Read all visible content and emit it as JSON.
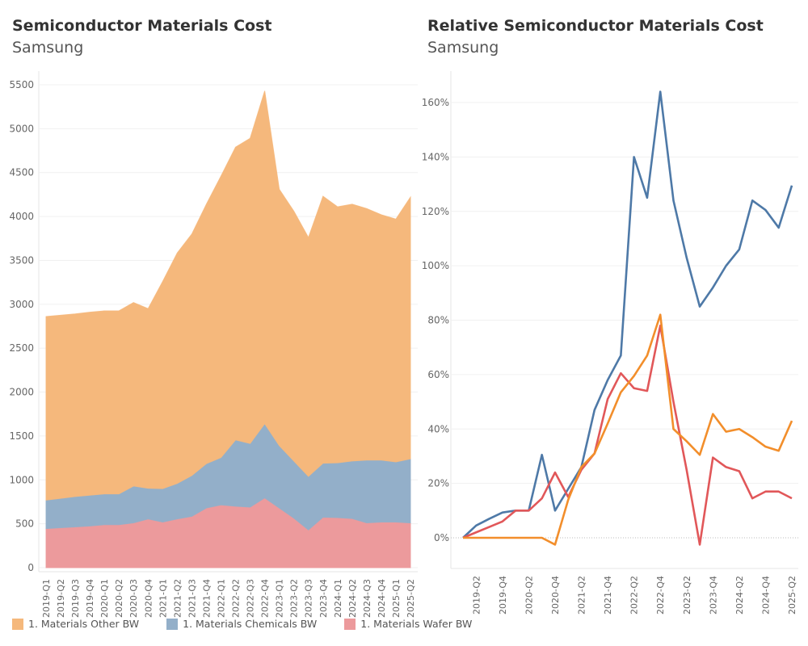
{
  "chart_data": [
    {
      "type": "area",
      "stacked": true,
      "title": "Semiconductor Materials Cost",
      "subtitle": "Samsung",
      "xlabel": "",
      "ylabel": "",
      "ylim": [
        0,
        5600
      ],
      "yticks": [
        0,
        500,
        1000,
        1500,
        2000,
        2500,
        3000,
        3500,
        4000,
        4500,
        5000,
        5500
      ],
      "grid": true,
      "legend_position": "bottom",
      "categories": [
        "2019-Q1",
        "2019-Q2",
        "2019-Q3",
        "2019-Q4",
        "2020-Q1",
        "2020-Q2",
        "2020-Q3",
        "2020-Q4",
        "2021-Q1",
        "2021-Q2",
        "2021-Q3",
        "2021-Q4",
        "2022-Q1",
        "2022-Q2",
        "2022-Q3",
        "2022-Q4",
        "2023-Q1",
        "2023-Q2",
        "2023-Q3",
        "2023-Q4",
        "2024-Q1",
        "2024-Q2",
        "2024-Q3",
        "2024-Q4",
        "2025-Q1",
        "2025-Q2"
      ],
      "series": [
        {
          "name": "1. Materials Wafer BW",
          "color": "#EC9A9C",
          "values": [
            445,
            455,
            465,
            475,
            490,
            490,
            510,
            555,
            520,
            555,
            585,
            680,
            715,
            700,
            690,
            795,
            680,
            565,
            430,
            575,
            570,
            560,
            510,
            520,
            520,
            510
          ]
        },
        {
          "name": "1. Materials Chemicals BW",
          "color": "#93AFC9",
          "values": [
            325,
            335,
            345,
            350,
            350,
            350,
            420,
            350,
            380,
            405,
            465,
            505,
            540,
            755,
            725,
            845,
            710,
            650,
            610,
            615,
            625,
            655,
            715,
            705,
            685,
            730
          ]
        },
        {
          "name": "1. Materials Other BW",
          "color": "#F5B87C",
          "values": [
            2090,
            2085,
            2080,
            2085,
            2085,
            2085,
            2090,
            2045,
            2360,
            2625,
            2750,
            2955,
            3205,
            3335,
            3475,
            3790,
            2920,
            2845,
            2720,
            3040,
            2915,
            2925,
            2865,
            2795,
            2765,
            2980
          ]
        }
      ],
      "legend_order": [
        "1. Materials Other BW",
        "1. Materials Chemicals BW",
        "1. Materials Wafer BW"
      ]
    },
    {
      "type": "line",
      "title": "Relative Semiconductor Materials Cost",
      "subtitle": "Samsung",
      "xlabel": "",
      "ylabel": "",
      "ylim": [
        -11,
        172
      ],
      "yticks": [
        0,
        20,
        40,
        60,
        80,
        100,
        120,
        140,
        160
      ],
      "ytick_labels": [
        "0%",
        "20%",
        "40%",
        "60%",
        "80%",
        "100%",
        "120%",
        "140%",
        "160%"
      ],
      "grid": true,
      "categories": [
        "2019-Q1",
        "2019-Q2",
        "2019-Q3",
        "2019-Q4",
        "2020-Q1",
        "2020-Q2",
        "2020-Q3",
        "2020-Q4",
        "2021-Q1",
        "2021-Q2",
        "2021-Q3",
        "2021-Q4",
        "2022-Q1",
        "2022-Q2",
        "2022-Q3",
        "2022-Q4",
        "2023-Q1",
        "2023-Q2",
        "2023-Q3",
        "2023-Q4",
        "2024-Q1",
        "2024-Q2",
        "2024-Q3",
        "2024-Q4",
        "2025-Q1",
        "2025-Q2"
      ],
      "xtick_labels_shown": [
        "2019-Q2",
        "2019-Q4",
        "2020-Q2",
        "2020-Q4",
        "2021-Q2",
        "2021-Q4",
        "2022-Q2",
        "2022-Q4",
        "2023-Q2",
        "2023-Q4",
        "2024-Q2",
        "2024-Q4",
        "2025-Q2"
      ],
      "series": [
        {
          "name": "1. Materials Chemicals BW",
          "color": "#4E79A7",
          "values": [
            0,
            4.5,
            7,
            9.3,
            10,
            10,
            30.5,
            10,
            18,
            26,
            47,
            58,
            67,
            140,
            125,
            164,
            124,
            103,
            85,
            92,
            100,
            106,
            124,
            120.5,
            114,
            129.5
          ]
        },
        {
          "name": "1. Materials Wafer BW",
          "color": "#E15759",
          "values": [
            0,
            2,
            4,
            6,
            10,
            10,
            14.5,
            24,
            15,
            25,
            31,
            51,
            60.5,
            55,
            54,
            78,
            50,
            25,
            -2.5,
            29.5,
            26,
            24.5,
            14.5,
            17,
            17,
            14.5
          ]
        },
        {
          "name": "1. Materials Other BW",
          "color": "#F28E2B",
          "values": [
            0,
            0,
            0,
            0,
            0,
            0,
            0,
            -2.5,
            14,
            26,
            31,
            42,
            53.5,
            59.5,
            67,
            82,
            40,
            35.5,
            30.5,
            45.5,
            39,
            40,
            37,
            33.5,
            32,
            43
          ]
        }
      ]
    }
  ]
}
